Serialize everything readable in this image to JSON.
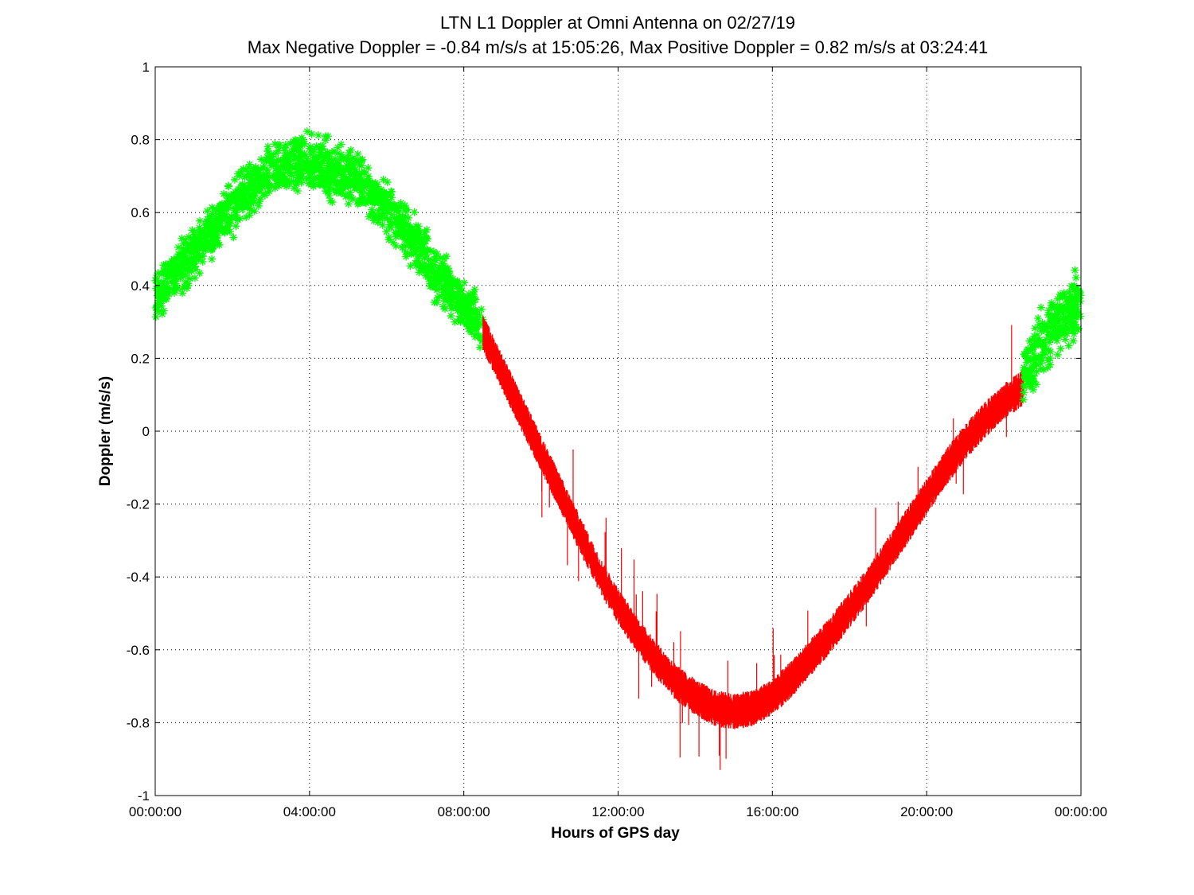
{
  "chart_data": {
    "type": "scatter",
    "title": "LTN  L1 Doppler at Omni Antenna on 02/27/19",
    "subtitle": "Max Negative Doppler = -0.84 m/s/s  at 15:05:26,   Max Positive Doppler = 0.82 m/s/s  at 03:24:41",
    "xlabel": "Hours of GPS day",
    "ylabel": "Doppler (m/s/s)",
    "xlim": [
      0,
      24
    ],
    "ylim": [
      -1,
      1
    ],
    "grid": true,
    "x_ticks": [
      {
        "value": 0,
        "label": "00:00:00"
      },
      {
        "value": 4,
        "label": "04:00:00"
      },
      {
        "value": 8,
        "label": "08:00:00"
      },
      {
        "value": 12,
        "label": "12:00:00"
      },
      {
        "value": 16,
        "label": "16:00:00"
      },
      {
        "value": 20,
        "label": "20:00:00"
      },
      {
        "value": 24,
        "label": "00:00:00"
      }
    ],
    "y_ticks": [
      {
        "value": 1,
        "label": "1"
      },
      {
        "value": 0.8,
        "label": "0.8"
      },
      {
        "value": 0.6,
        "label": "0.6"
      },
      {
        "value": 0.4,
        "label": "0.4"
      },
      {
        "value": 0.2,
        "label": "0.2"
      },
      {
        "value": 0,
        "label": "0"
      },
      {
        "value": -0.2,
        "label": "-0.2"
      },
      {
        "value": -0.4,
        "label": "-0.4"
      },
      {
        "value": -0.6,
        "label": "-0.6"
      },
      {
        "value": -0.8,
        "label": "-0.8"
      },
      {
        "value": -1,
        "label": "-1"
      }
    ],
    "series": [
      {
        "color": "#00ff00",
        "marker": "asterisk",
        "x_unit": "hours",
        "x": [
          0.0,
          0.25,
          0.5,
          0.75,
          1.0,
          1.25,
          1.5,
          1.75,
          2.0,
          2.25,
          2.5,
          2.75,
          3.0,
          3.25,
          3.5,
          3.75,
          4.0,
          4.25,
          4.5,
          4.75,
          5.0,
          5.25,
          5.5,
          5.75,
          6.0,
          6.25,
          6.5,
          6.75,
          7.0,
          7.25,
          7.5,
          7.75,
          8.0,
          8.25,
          8.5
        ],
        "y": [
          0.37,
          0.4,
          0.43,
          0.46,
          0.49,
          0.52,
          0.55,
          0.58,
          0.61,
          0.64,
          0.67,
          0.69,
          0.71,
          0.72,
          0.73,
          0.735,
          0.735,
          0.73,
          0.72,
          0.71,
          0.7,
          0.68,
          0.66,
          0.64,
          0.61,
          0.58,
          0.55,
          0.52,
          0.48,
          0.44,
          0.41,
          0.38,
          0.34,
          0.31,
          0.28
        ],
        "spread": 0.12
      },
      {
        "color": "#ff0000",
        "marker": "line",
        "x_unit": "hours",
        "x": [
          8.5,
          9.0,
          9.5,
          10.0,
          10.5,
          11.0,
          11.5,
          12.0,
          12.5,
          13.0,
          13.5,
          14.0,
          14.5,
          15.0,
          15.5,
          16.0,
          16.5,
          17.0,
          17.5,
          18.0,
          18.5,
          19.0,
          19.5,
          20.0,
          20.5,
          21.0,
          21.5,
          22.0,
          22.5
        ],
        "y": [
          0.27,
          0.16,
          0.05,
          -0.06,
          -0.17,
          -0.28,
          -0.39,
          -0.48,
          -0.56,
          -0.63,
          -0.69,
          -0.73,
          -0.76,
          -0.77,
          -0.76,
          -0.73,
          -0.68,
          -0.62,
          -0.56,
          -0.49,
          -0.42,
          -0.34,
          -0.26,
          -0.18,
          -0.1,
          -0.03,
          0.03,
          0.08,
          0.12
        ],
        "spread": 0.1
      },
      {
        "color": "#00ff00",
        "marker": "asterisk",
        "x_unit": "hours",
        "x": [
          22.5,
          22.75,
          23.0,
          23.25,
          23.5,
          23.75,
          24.0
        ],
        "y": [
          0.14,
          0.19,
          0.24,
          0.28,
          0.31,
          0.34,
          0.36
        ],
        "spread": 0.14
      }
    ]
  }
}
